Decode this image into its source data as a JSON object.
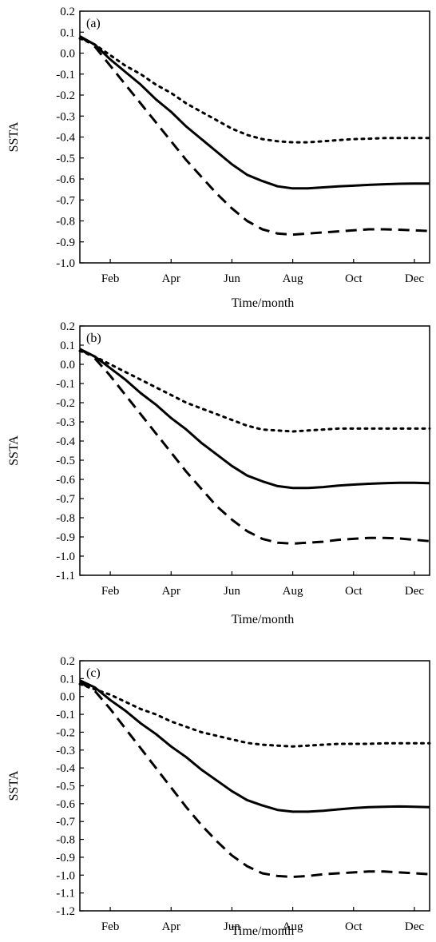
{
  "chart_data": [
    {
      "type": "line",
      "panel_label": "(a)",
      "xlabel": "Time/month",
      "ylabel": "SSTA",
      "ylim": [
        -1.0,
        0.2
      ],
      "yticks": [
        "0.2",
        "0.1",
        "0.0",
        "-0.1",
        "-0.2",
        "-0.3",
        "-0.4",
        "-0.5",
        "-0.6",
        "-0.7",
        "-0.8",
        "-0.9",
        "-1.0"
      ],
      "xlim": [
        1,
        12.5
      ],
      "xticks": [
        {
          "month": 2,
          "label": "Feb"
        },
        {
          "month": 4,
          "label": "Apr"
        },
        {
          "month": 6,
          "label": "Jun"
        },
        {
          "month": 8,
          "label": "Aug"
        },
        {
          "month": 10,
          "label": "Oct"
        },
        {
          "month": 12,
          "label": "Dec"
        }
      ],
      "grid": false,
      "x": [
        1,
        1.5,
        2,
        2.5,
        3,
        3.5,
        4,
        4.5,
        5,
        5.5,
        6,
        6.5,
        7,
        7.5,
        8,
        8.5,
        9,
        9.5,
        10,
        10.5,
        11,
        11.5,
        12,
        12.5
      ],
      "series": [
        {
          "style": "solid",
          "values": [
            0.08,
            0.04,
            -0.03,
            -0.09,
            -0.15,
            -0.22,
            -0.28,
            -0.35,
            -0.41,
            -0.47,
            -0.53,
            -0.58,
            -0.61,
            -0.635,
            -0.645,
            -0.645,
            -0.64,
            -0.635,
            -0.632,
            -0.628,
            -0.625,
            -0.623,
            -0.622,
            -0.622
          ]
        },
        {
          "style": "dashed",
          "values": [
            0.08,
            0.03,
            -0.06,
            -0.15,
            -0.24,
            -0.33,
            -0.42,
            -0.51,
            -0.59,
            -0.67,
            -0.74,
            -0.8,
            -0.84,
            -0.86,
            -0.865,
            -0.86,
            -0.855,
            -0.85,
            -0.845,
            -0.84,
            -0.84,
            -0.842,
            -0.845,
            -0.848
          ]
        },
        {
          "style": "dotted",
          "values": [
            0.07,
            0.04,
            -0.01,
            -0.06,
            -0.1,
            -0.15,
            -0.19,
            -0.24,
            -0.28,
            -0.32,
            -0.36,
            -0.39,
            -0.41,
            -0.42,
            -0.425,
            -0.425,
            -0.42,
            -0.415,
            -0.41,
            -0.408,
            -0.405,
            -0.405,
            -0.405,
            -0.405
          ]
        }
      ]
    },
    {
      "type": "line",
      "panel_label": "(b)",
      "xlabel": "Time/month",
      "ylabel": "SSTA",
      "ylim": [
        -1.1,
        0.2
      ],
      "yticks": [
        "0.2",
        "0.1",
        "0.0",
        "-0.1",
        "-0.2",
        "-0.3",
        "-0.4",
        "-0.5",
        "-0.6",
        "-0.7",
        "-0.8",
        "-0.9",
        "-1.0",
        "-1.1"
      ],
      "xlim": [
        1,
        12.5
      ],
      "xticks": [
        {
          "month": 2,
          "label": "Feb"
        },
        {
          "month": 4,
          "label": "Apr"
        },
        {
          "month": 6,
          "label": "Jun"
        },
        {
          "month": 8,
          "label": "Aug"
        },
        {
          "month": 10,
          "label": "Oct"
        },
        {
          "month": 12,
          "label": "Dec"
        }
      ],
      "grid": false,
      "x": [
        1,
        1.5,
        2,
        2.5,
        3,
        3.5,
        4,
        4.5,
        5,
        5.5,
        6,
        6.5,
        7,
        7.5,
        8,
        8.5,
        9,
        9.5,
        10,
        10.5,
        11,
        11.5,
        12,
        12.5
      ],
      "series": [
        {
          "style": "solid",
          "values": [
            0.08,
            0.04,
            -0.02,
            -0.08,
            -0.15,
            -0.21,
            -0.28,
            -0.34,
            -0.41,
            -0.47,
            -0.53,
            -0.58,
            -0.61,
            -0.635,
            -0.645,
            -0.645,
            -0.64,
            -0.632,
            -0.627,
            -0.623,
            -0.62,
            -0.618,
            -0.618,
            -0.62
          ]
        },
        {
          "style": "dashed",
          "values": [
            0.08,
            0.03,
            -0.06,
            -0.16,
            -0.26,
            -0.36,
            -0.46,
            -0.56,
            -0.65,
            -0.74,
            -0.81,
            -0.87,
            -0.91,
            -0.93,
            -0.935,
            -0.93,
            -0.925,
            -0.915,
            -0.91,
            -0.905,
            -0.905,
            -0.908,
            -0.915,
            -0.922
          ]
        },
        {
          "style": "dotted",
          "values": [
            0.07,
            0.04,
            0.0,
            -0.04,
            -0.08,
            -0.12,
            -0.16,
            -0.2,
            -0.23,
            -0.26,
            -0.29,
            -0.32,
            -0.34,
            -0.345,
            -0.35,
            -0.345,
            -0.34,
            -0.335,
            -0.335,
            -0.335,
            -0.335,
            -0.335,
            -0.335,
            -0.335
          ]
        }
      ]
    },
    {
      "type": "line",
      "panel_label": "(c)",
      "xlabel": "Time/month",
      "ylabel": "SSTA",
      "ylim": [
        -1.2,
        0.2
      ],
      "yticks": [
        "0.2",
        "0.1",
        "0.0",
        "-0.1",
        "-0.2",
        "-0.3",
        "-0.4",
        "-0.5",
        "-0.6",
        "-0.7",
        "-0.8",
        "-0.9",
        "-1.0",
        "-1.1",
        "-1.2"
      ],
      "xlim": [
        1,
        12.5
      ],
      "xticks": [
        {
          "month": 2,
          "label": "Feb"
        },
        {
          "month": 4,
          "label": "Apr"
        },
        {
          "month": 6,
          "label": "Jun"
        },
        {
          "month": 8,
          "label": "Aug"
        },
        {
          "month": 10,
          "label": "Oct"
        },
        {
          "month": 12,
          "label": "Dec"
        }
      ],
      "grid": false,
      "x": [
        1,
        1.5,
        2,
        2.5,
        3,
        3.5,
        4,
        4.5,
        5,
        5.5,
        6,
        6.5,
        7,
        7.5,
        8,
        8.5,
        9,
        9.5,
        10,
        10.5,
        11,
        11.5,
        12,
        12.5
      ],
      "series": [
        {
          "style": "solid",
          "values": [
            0.09,
            0.05,
            -0.02,
            -0.08,
            -0.15,
            -0.21,
            -0.28,
            -0.34,
            -0.41,
            -0.47,
            -0.53,
            -0.58,
            -0.61,
            -0.635,
            -0.645,
            -0.645,
            -0.64,
            -0.632,
            -0.625,
            -0.62,
            -0.617,
            -0.616,
            -0.617,
            -0.62
          ]
        },
        {
          "style": "dashed",
          "values": [
            0.08,
            0.03,
            -0.07,
            -0.18,
            -0.29,
            -0.4,
            -0.51,
            -0.62,
            -0.72,
            -0.81,
            -0.89,
            -0.95,
            -0.99,
            -1.005,
            -1.01,
            -1.005,
            -0.995,
            -0.99,
            -0.985,
            -0.98,
            -0.98,
            -0.985,
            -0.99,
            -0.995
          ]
        },
        {
          "style": "dotted",
          "values": [
            0.07,
            0.04,
            0.01,
            -0.03,
            -0.07,
            -0.1,
            -0.14,
            -0.17,
            -0.2,
            -0.22,
            -0.24,
            -0.26,
            -0.27,
            -0.275,
            -0.28,
            -0.275,
            -0.27,
            -0.265,
            -0.265,
            -0.265,
            -0.262,
            -0.262,
            -0.262,
            -0.262
          ]
        }
      ]
    }
  ]
}
